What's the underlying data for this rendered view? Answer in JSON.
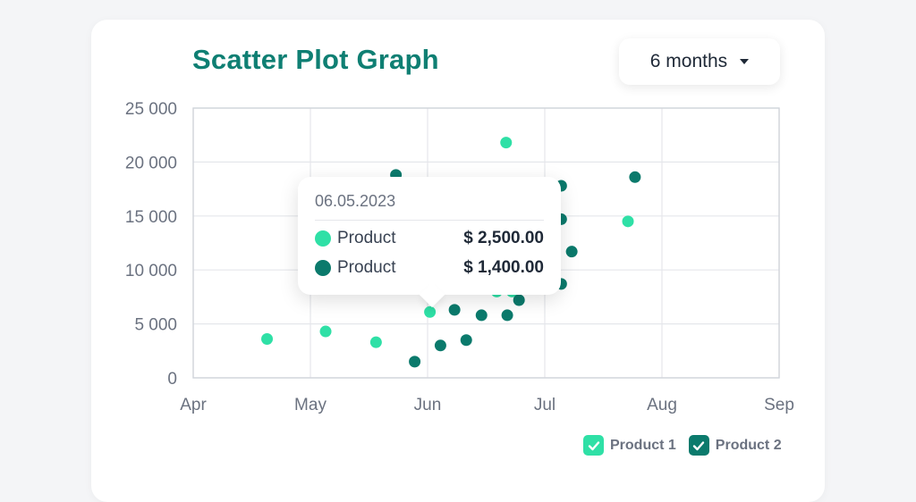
{
  "chart_data": {
    "type": "scatter",
    "title": "Scatter Plot Graph",
    "xlabel": "",
    "ylabel": "",
    "x_ticks": [
      "Apr",
      "May",
      "Jun",
      "Jul",
      "Aug",
      "Sep"
    ],
    "y_ticks": [
      "25 000",
      "20 000",
      "15 000",
      "10 000",
      "5 000",
      "0"
    ],
    "xlim": [
      0,
      5
    ],
    "ylim": [
      0,
      25000
    ],
    "grid": true,
    "legend_position": "bottom-right",
    "series": [
      {
        "name": "Product 1",
        "color": "#2fe0a6",
        "points": [
          {
            "x": 0.63,
            "y": 3600
          },
          {
            "x": 1.13,
            "y": 4300
          },
          {
            "x": 1.56,
            "y": 3300
          },
          {
            "x": 2.02,
            "y": 6100
          },
          {
            "x": 2.67,
            "y": 21800
          },
          {
            "x": 2.59,
            "y": 8000
          },
          {
            "x": 2.72,
            "y": 8000
          },
          {
            "x": 3.71,
            "y": 14500
          }
        ]
      },
      {
        "name": "Product 2",
        "color": "#0b7a6c",
        "points": [
          {
            "x": 1.73,
            "y": 18800
          },
          {
            "x": 1.89,
            "y": 1500
          },
          {
            "x": 2.11,
            "y": 3000
          },
          {
            "x": 2.23,
            "y": 6300
          },
          {
            "x": 2.33,
            "y": 3500
          },
          {
            "x": 2.46,
            "y": 5800
          },
          {
            "x": 2.68,
            "y": 5800
          },
          {
            "x": 2.78,
            "y": 7200
          },
          {
            "x": 3.14,
            "y": 17800
          },
          {
            "x": 3.14,
            "y": 14700
          },
          {
            "x": 3.23,
            "y": 11700
          },
          {
            "x": 3.14,
            "y": 8700
          },
          {
            "x": 3.77,
            "y": 18600
          }
        ]
      }
    ]
  },
  "range_select": {
    "label": "6 months"
  },
  "tooltip": {
    "date": "06.05.2023",
    "rows": [
      {
        "name": "Product",
        "value": "$ 2,500.00",
        "color": "#2fe0a6"
      },
      {
        "name": "Product",
        "value": "$ 1,400.00",
        "color": "#0b7a6c"
      }
    ]
  },
  "legend": {
    "items": [
      {
        "label": "Product 1",
        "color": "#2fe0a6",
        "checked": true
      },
      {
        "label": "Product 2",
        "color": "#0b7a6c",
        "checked": true
      }
    ]
  }
}
